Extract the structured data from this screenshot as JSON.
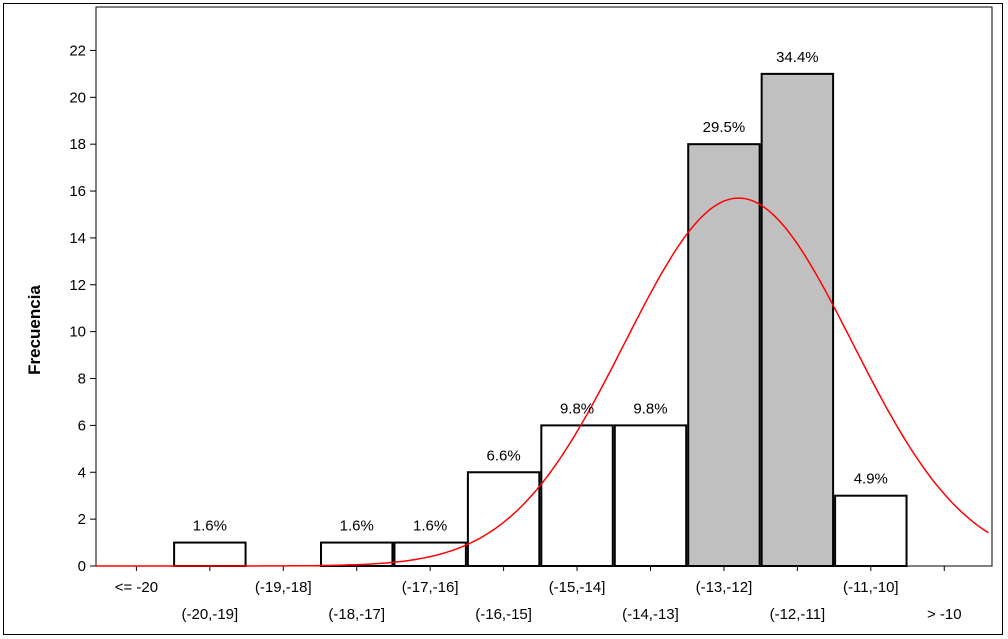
{
  "chart_data": {
    "type": "bar",
    "ylabel": "Frecuencia",
    "xlabel": "",
    "ylim": [
      0,
      23
    ],
    "yticks": [
      0,
      2,
      4,
      6,
      8,
      10,
      12,
      14,
      16,
      18,
      20,
      22
    ],
    "categories": [
      "<= -20",
      "(-20,-19]",
      "(-19,-18]",
      "(-18,-17]",
      "(-17,-16]",
      "(-16,-15]",
      "(-15,-14]",
      "(-14,-13]",
      "(-13,-12]",
      "(-12,-11]",
      "(-11,-10]",
      "> -10"
    ],
    "values": [
      0,
      1,
      0,
      1,
      1,
      4,
      6,
      6,
      18,
      21,
      3,
      0
    ],
    "labels": [
      "",
      "1.6%",
      "",
      "1.6%",
      "1.6%",
      "6.6%",
      "9.8%",
      "9.8%",
      "29.5%",
      "34.4%",
      "4.9%",
      ""
    ],
    "highlighted": [
      false,
      false,
      false,
      false,
      false,
      false,
      false,
      false,
      true,
      true,
      false,
      false
    ],
    "fit_curve": {
      "type": "normal",
      "mean": -12.3,
      "sd": 1.55,
      "scale": 61,
      "color": "#ff0000"
    },
    "colors": {
      "bar_fill": "#ffffff",
      "bar_highlight_fill": "#c0c0c0",
      "bar_stroke": "#000000",
      "curve": "#ff0000"
    },
    "grid": false
  }
}
